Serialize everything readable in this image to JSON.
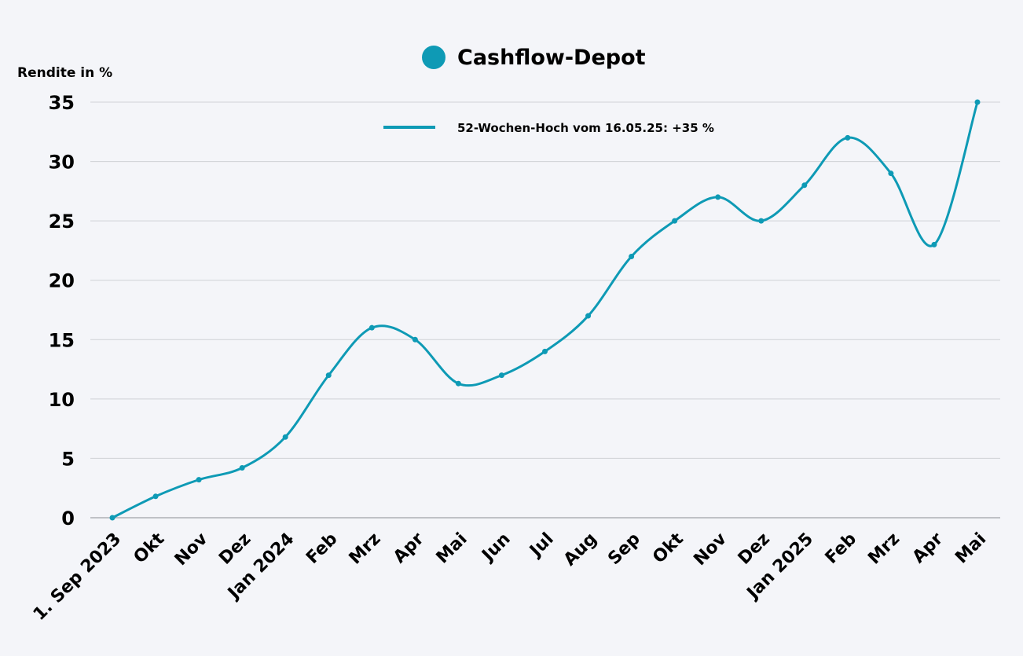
{
  "chart_data": {
    "type": "line",
    "title": "Cashflow-Depot",
    "ylabel": "Rendite in %",
    "xlabel": "",
    "legend": "52-Wochen-Hoch vom 16.05.25: +35 %",
    "legend_placement": "top-center",
    "ylim": [
      0,
      35
    ],
    "yticks": [
      0,
      5,
      10,
      15,
      20,
      25,
      30,
      35
    ],
    "grid": true,
    "color": "#0e9ab5",
    "categories": [
      "1. Sep 2023",
      "Okt",
      "Nov",
      "Dez",
      "Jan 2024",
      "Feb",
      "Mrz",
      "Apr",
      "Mai",
      "Jun",
      "Jul",
      "Aug",
      "Sep",
      "Okt",
      "Nov",
      "Dez",
      "Jan 2025",
      "Feb",
      "Mrz",
      "Apr",
      "Mai"
    ],
    "series": [
      {
        "name": "Cashflow-Depot",
        "values": [
          0,
          1.8,
          3.2,
          4.2,
          6.8,
          12,
          16,
          15,
          11.3,
          12,
          14,
          17,
          22,
          25,
          27,
          25,
          28,
          32,
          29,
          23,
          35
        ]
      }
    ]
  }
}
